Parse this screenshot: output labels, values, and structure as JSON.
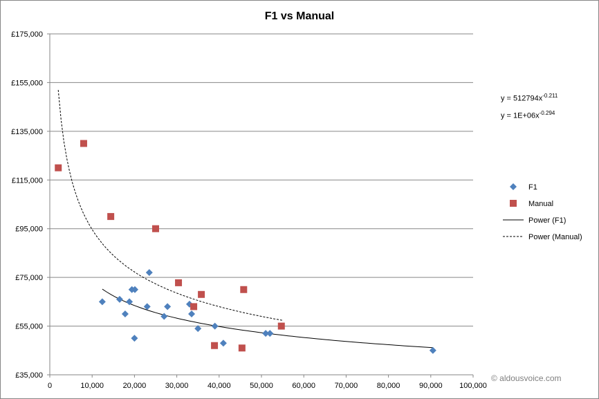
{
  "chart_data": {
    "type": "scatter",
    "title": "F1 vs Manual",
    "xlabel": "",
    "ylabel": "",
    "xlim": [
      0,
      100000
    ],
    "ylim": [
      35000,
      175000
    ],
    "x_ticks": [
      "0",
      "10,000",
      "20,000",
      "30,000",
      "40,000",
      "50,000",
      "60,000",
      "70,000",
      "80,000",
      "90,000",
      "100,000"
    ],
    "y_ticks": [
      "£35,000",
      "£55,000",
      "£75,000",
      "£95,000",
      "£115,000",
      "£135,000",
      "£155,000",
      "£175,000"
    ],
    "grid": "horizontal",
    "legend_position": "right",
    "series": [
      {
        "name": "F1",
        "marker": "diamond",
        "color": "#4f81bd",
        "x": [
          12400,
          16500,
          18800,
          17800,
          19400,
          20100,
          20000,
          23000,
          23500,
          27000,
          27800,
          33000,
          33500,
          35000,
          39000,
          41000,
          51000,
          52000,
          90500
        ],
        "y": [
          65000,
          66000,
          65000,
          60000,
          70000,
          70000,
          50000,
          63000,
          77000,
          59000,
          63000,
          64000,
          60000,
          54000,
          55000,
          48000,
          52000,
          52000,
          45000
        ]
      },
      {
        "name": "Manual",
        "marker": "square",
        "color": "#c0504d",
        "x": [
          2000,
          8000,
          14400,
          25000,
          30400,
          35800,
          34000,
          38900,
          45400,
          45800,
          54700
        ],
        "y": [
          120000,
          130000,
          100000,
          95000,
          72800,
          68000,
          63000,
          47000,
          46000,
          70000,
          55000
        ]
      }
    ],
    "trendlines": [
      {
        "name": "Power (F1)",
        "style": "solid",
        "coef": 512794,
        "exp": -0.211,
        "x_range": [
          12400,
          90500
        ],
        "equation_prefix": "y = 512794x",
        "equation_exp": "-0.211"
      },
      {
        "name": "Power (Manual)",
        "style": "dashed",
        "coef": 1420000,
        "exp": -0.294,
        "x_range": [
          2000,
          55000
        ],
        "equation_prefix": "y = 1E+06x",
        "equation_exp": "-0.294"
      }
    ]
  },
  "watermark": "© aldousvoice.com"
}
